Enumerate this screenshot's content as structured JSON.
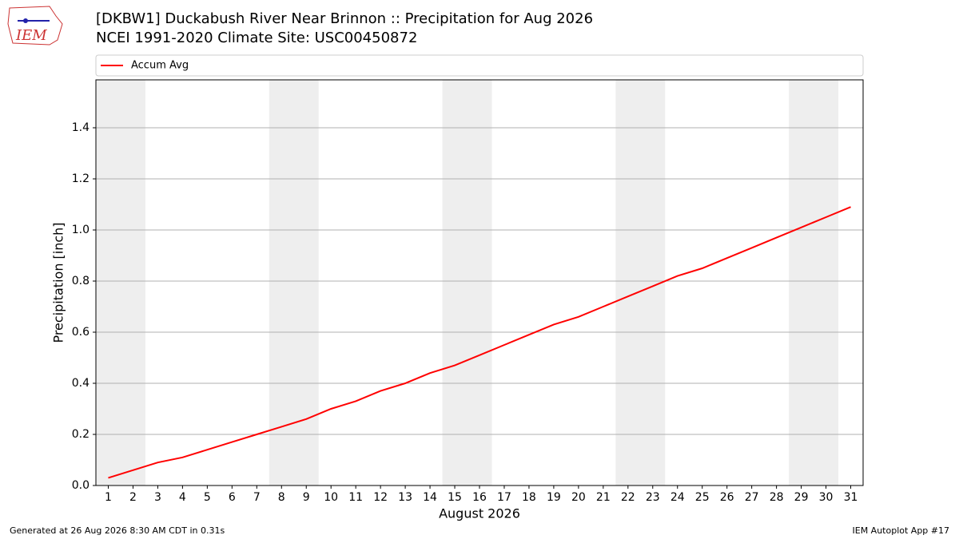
{
  "logo": "IEM",
  "footer": {
    "left": "Generated at 26 Aug 2026 8:30 AM CDT in 0.31s",
    "right": "IEM Autoplot App #17"
  },
  "chart_data": {
    "type": "line",
    "title": "[DKBW1] Duckabush River Near Brinnon :: Precipitation for Aug 2026",
    "subtitle": "NCEI 1991-2020 Climate Site: USC00450872",
    "x_label": "August 2026",
    "y_label": "Precipitation [inch]",
    "x": [
      1,
      2,
      3,
      4,
      5,
      6,
      7,
      8,
      9,
      10,
      11,
      12,
      13,
      14,
      15,
      16,
      17,
      18,
      19,
      20,
      21,
      22,
      23,
      24,
      25,
      26,
      27,
      28,
      29,
      30,
      31
    ],
    "series": [
      {
        "name": "Accum Avg",
        "color": "#ff0000",
        "values": [
          0.03,
          0.06,
          0.09,
          0.11,
          0.14,
          0.17,
          0.2,
          0.23,
          0.26,
          0.3,
          0.33,
          0.37,
          0.4,
          0.44,
          0.47,
          0.51,
          0.55,
          0.59,
          0.63,
          0.66,
          0.7,
          0.74,
          0.78,
          0.82,
          0.85,
          0.89,
          0.93,
          0.97,
          1.01,
          1.05,
          1.09
        ]
      }
    ],
    "xlim": [
      0.5,
      31.5
    ],
    "xticks": [
      1,
      2,
      3,
      4,
      5,
      6,
      7,
      8,
      9,
      10,
      11,
      12,
      13,
      14,
      15,
      16,
      17,
      18,
      19,
      20,
      21,
      22,
      23,
      24,
      25,
      26,
      27,
      28,
      29,
      30,
      31
    ],
    "ylim": [
      0,
      1.5875
    ],
    "yticks": [
      {
        "value": 0,
        "label": "0.0"
      },
      0.2,
      0.4,
      0.6,
      0.8,
      {
        "value": 1,
        "label": "1.0"
      },
      1.2,
      1.4
    ],
    "grid": true,
    "shaded_spans": [
      [
        0.5,
        2.5
      ],
      [
        7.5,
        9.5
      ],
      [
        14.5,
        16.5
      ],
      [
        21.5,
        23.5
      ],
      [
        28.5,
        30.5
      ]
    ],
    "shade_color": "#eeeeee",
    "legend": "top"
  }
}
